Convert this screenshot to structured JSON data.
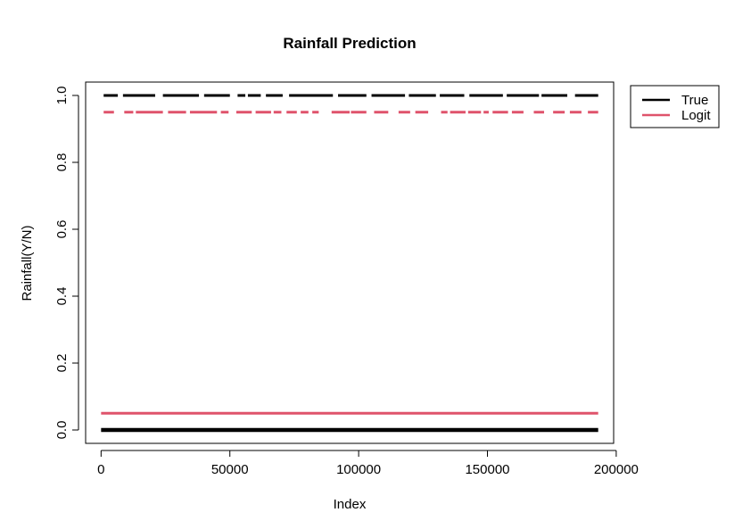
{
  "chart_data": {
    "type": "line",
    "title": "Rainfall Prediction",
    "xlabel": "Index",
    "ylabel": "Rainfall(Y/N)",
    "xlim": [
      -6000,
      199000
    ],
    "ylim": [
      -0.04,
      1.04
    ],
    "x_ticks": [
      0,
      50000,
      100000,
      150000,
      200000
    ],
    "x_tick_labels": [
      "0",
      "50000",
      "100000",
      "150000",
      "200000"
    ],
    "y_ticks": [
      0.0,
      0.2,
      0.4,
      0.6,
      0.8,
      1.0
    ],
    "y_tick_labels": [
      "0.0",
      "0.2",
      "0.4",
      "0.6",
      "0.8",
      "1.0"
    ],
    "grid": false,
    "legend_position": "outside-top-right",
    "series": [
      {
        "name": "True",
        "color": "#000000",
        "x_range": [
          0,
          193000
        ],
        "levels": [
          {
            "y": 0.0,
            "segments": [
              [
                0,
                193000
              ]
            ]
          },
          {
            "y": 1.0,
            "segments": [
              [
                1000,
                6500
              ],
              [
                8500,
                21000
              ],
              [
                24000,
                38000
              ],
              [
                40000,
                50000
              ],
              [
                53000,
                56000
              ],
              [
                57000,
                62000
              ],
              [
                64000,
                70500
              ],
              [
                73000,
                90000
              ],
              [
                92000,
                103000
              ],
              [
                105000,
                118000
              ],
              [
                119500,
                130000
              ],
              [
                131500,
                141000
              ],
              [
                143000,
                156000
              ],
              [
                157500,
                170000
              ],
              [
                171000,
                181000
              ],
              [
                184000,
                193000
              ]
            ]
          }
        ]
      },
      {
        "name": "Logit",
        "color": "#DF536B",
        "x_range": [
          0,
          193000
        ],
        "levels": [
          {
            "y": 0.05,
            "segments": [
              [
                0,
                193000
              ]
            ]
          },
          {
            "y": 0.95,
            "segments": [
              [
                1000,
                5000
              ],
              [
                9000,
                12500
              ],
              [
                13500,
                24000
              ],
              [
                26000,
                33000
              ],
              [
                34500,
                45000
              ],
              [
                46500,
                49500
              ],
              [
                52500,
                58500
              ],
              [
                60000,
                66000
              ],
              [
                67000,
                70000
              ],
              [
                72000,
                76000
              ],
              [
                77500,
                80500
              ],
              [
                82000,
                84500
              ],
              [
                89500,
                96500
              ],
              [
                97000,
                103000
              ],
              [
                106000,
                111500
              ],
              [
                115500,
                120000
              ],
              [
                122000,
                127000
              ],
              [
                132000,
                134500
              ],
              [
                135500,
                141500
              ],
              [
                142500,
                147500
              ],
              [
                148500,
                150500
              ],
              [
                152000,
                158000
              ],
              [
                159500,
                164000
              ],
              [
                168000,
                172000
              ],
              [
                175500,
                180000
              ],
              [
                182000,
                186500
              ],
              [
                189000,
                193000
              ]
            ]
          }
        ]
      }
    ]
  }
}
